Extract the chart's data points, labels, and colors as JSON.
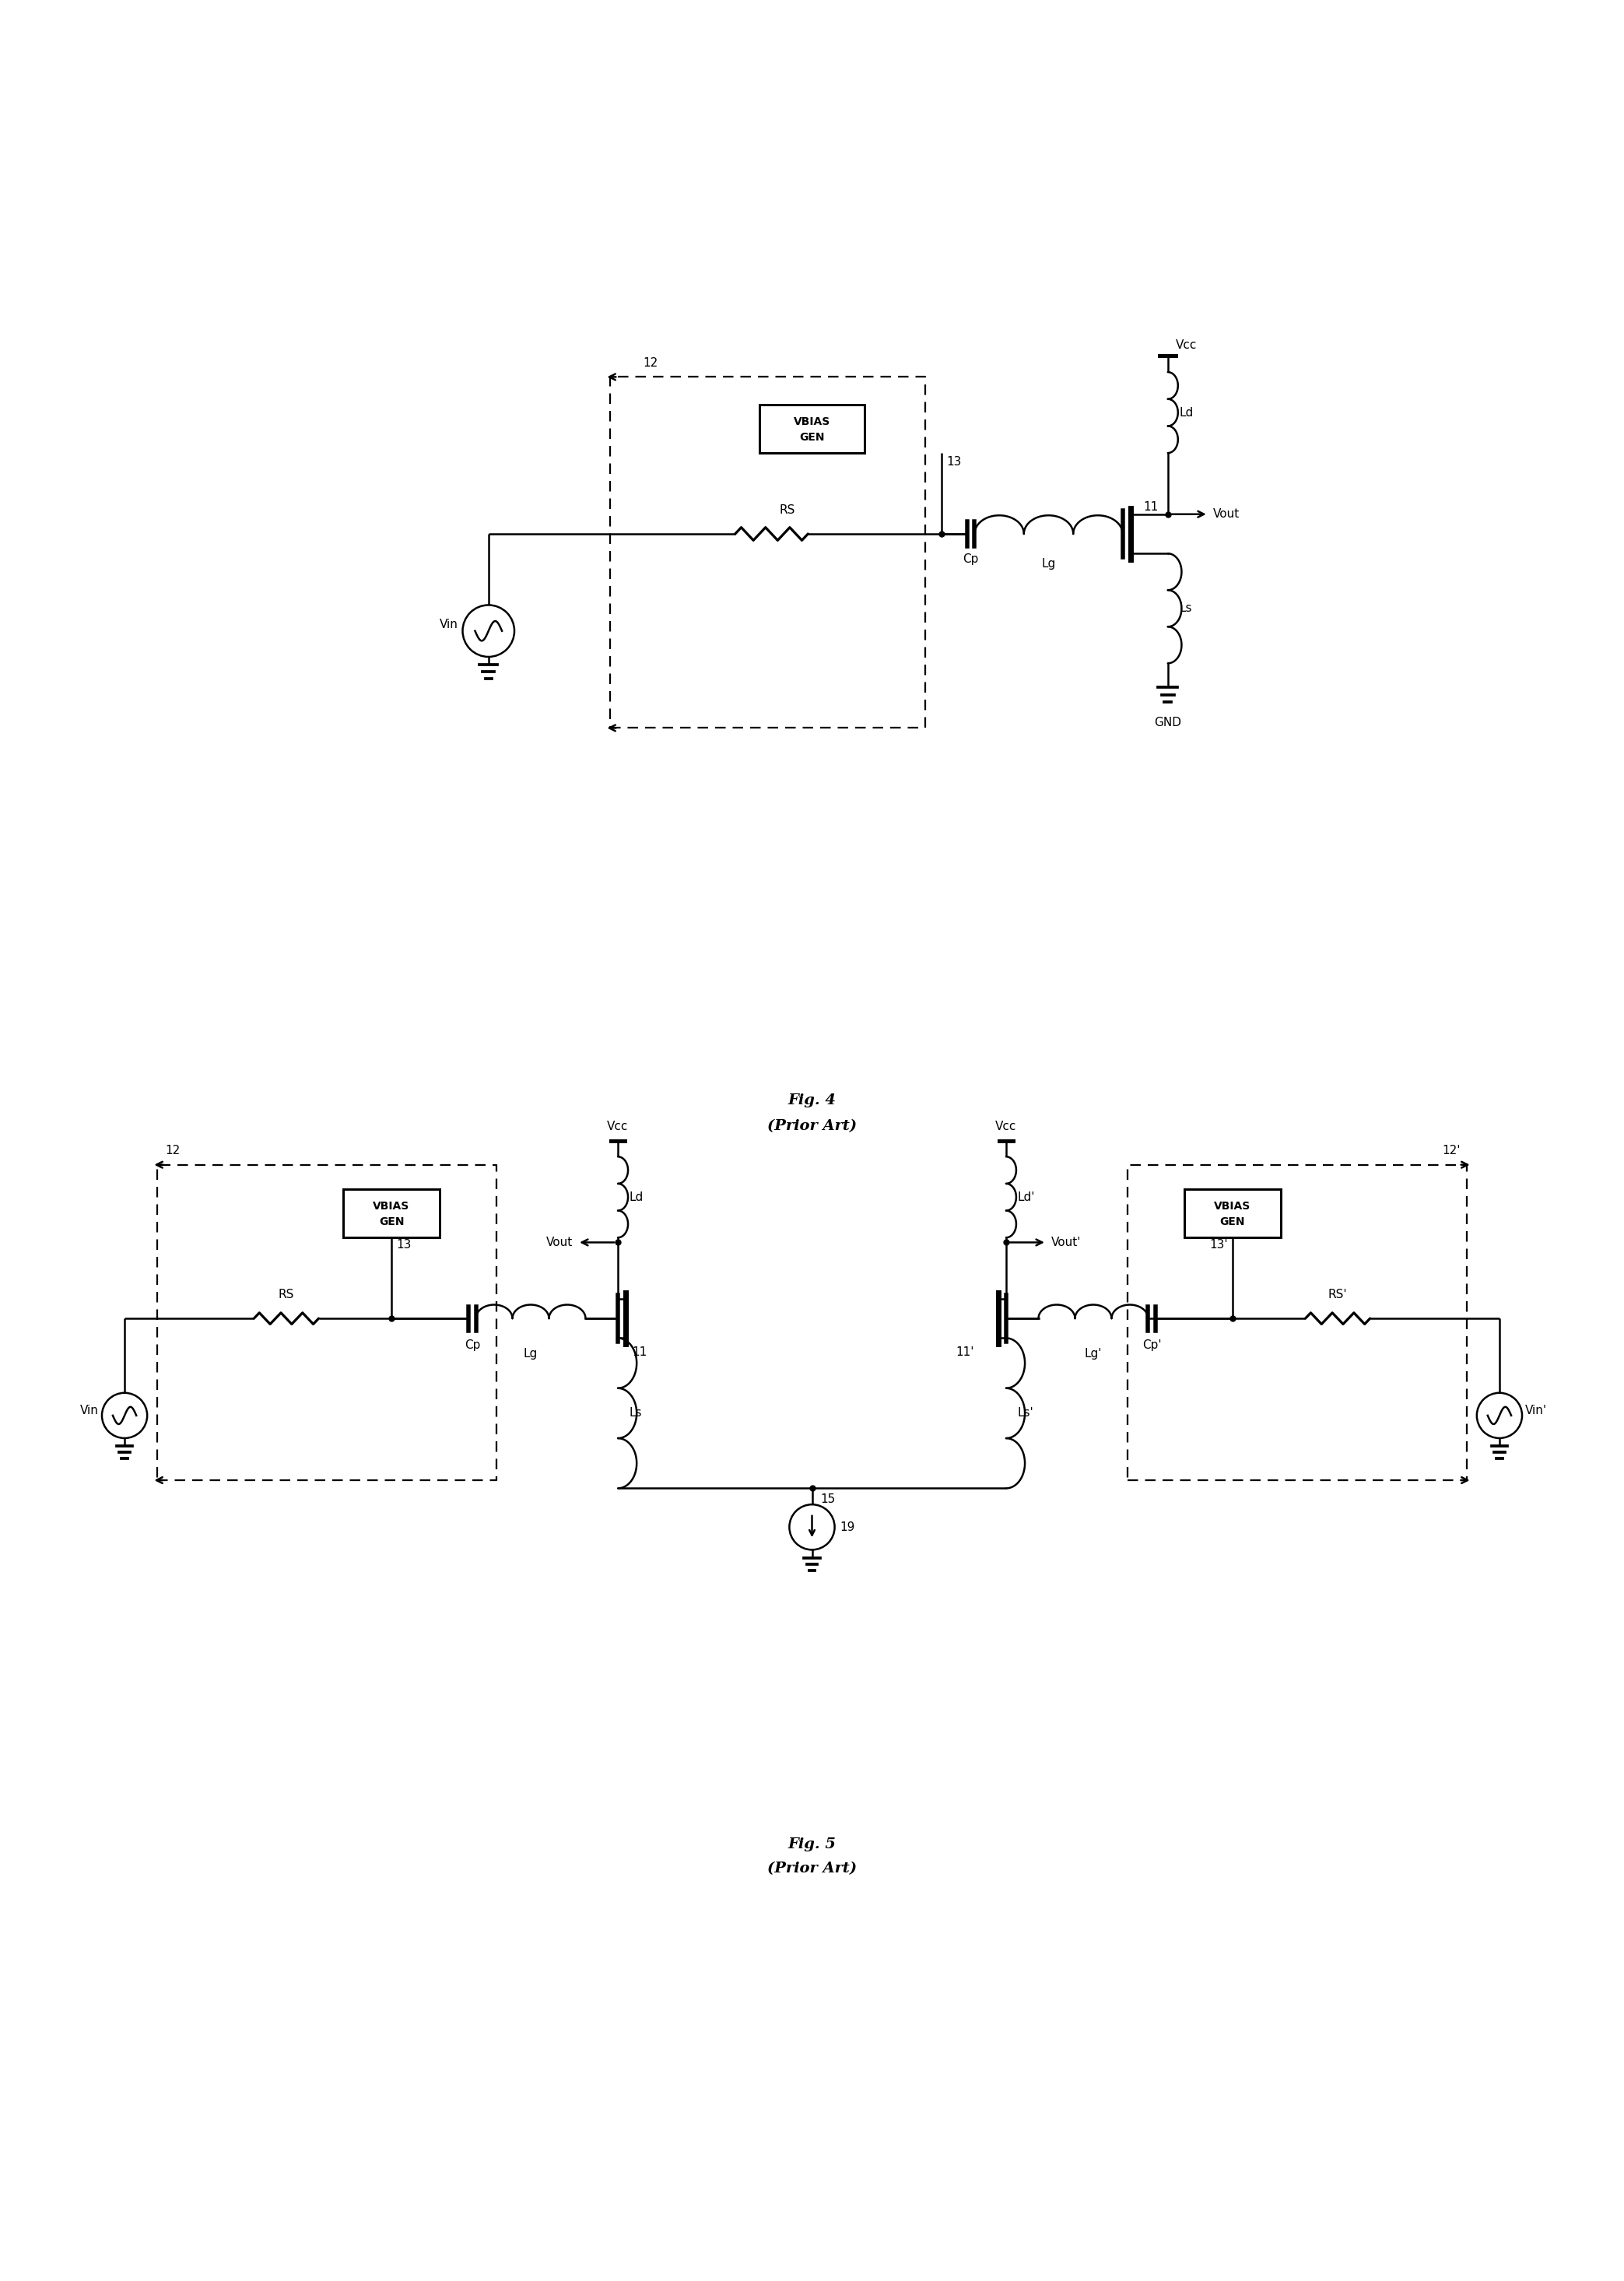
{
  "bg_color": "#ffffff",
  "line_color": "#000000",
  "fig_width": 20.87,
  "fig_height": 29.31,
  "fig4_title": "Fig. 4",
  "fig4_subtitle": "(Prior Art)",
  "fig5_title": "Fig. 5",
  "fig5_subtitle": "(Prior Art)"
}
